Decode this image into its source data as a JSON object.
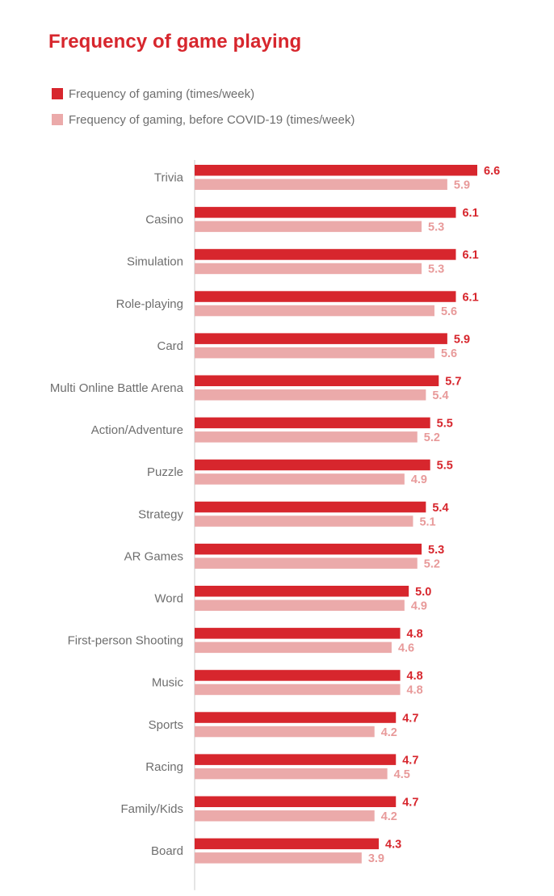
{
  "chart_data": {
    "type": "bar",
    "orientation": "horizontal",
    "title": "Frequency of game playing",
    "categories": [
      "Trivia",
      "Casino",
      "Simulation",
      "Role-playing",
      "Card",
      "Multi Online Battle Arena",
      "Action/Adventure",
      "Puzzle",
      "Strategy",
      "AR Games",
      "Word",
      "First-person Shooting",
      "Music",
      "Sports",
      "Racing",
      "Family/Kids",
      "Board"
    ],
    "series": [
      {
        "name": "Frequency of gaming (times/week)",
        "color": "#d7262d",
        "values": [
          6.6,
          6.1,
          6.1,
          6.1,
          5.9,
          5.7,
          5.5,
          5.5,
          5.4,
          5.3,
          5.0,
          4.8,
          4.8,
          4.7,
          4.7,
          4.7,
          4.3
        ]
      },
      {
        "name": "Frequency of gaming, before COVID-19 (times/week)",
        "color": "#ebaaaa",
        "values": [
          5.9,
          5.3,
          5.3,
          5.6,
          5.6,
          5.4,
          5.2,
          4.9,
          5.1,
          5.2,
          4.9,
          4.6,
          4.8,
          4.2,
          4.5,
          4.2,
          3.9
        ]
      }
    ],
    "label_colors": [
      "#d7262d",
      "#e89a9a"
    ],
    "axis_line_color": "#c9c9c9",
    "xlim": [
      0,
      6.6
    ],
    "grid": false,
    "legend_position": "top-left",
    "data_labels": true
  }
}
